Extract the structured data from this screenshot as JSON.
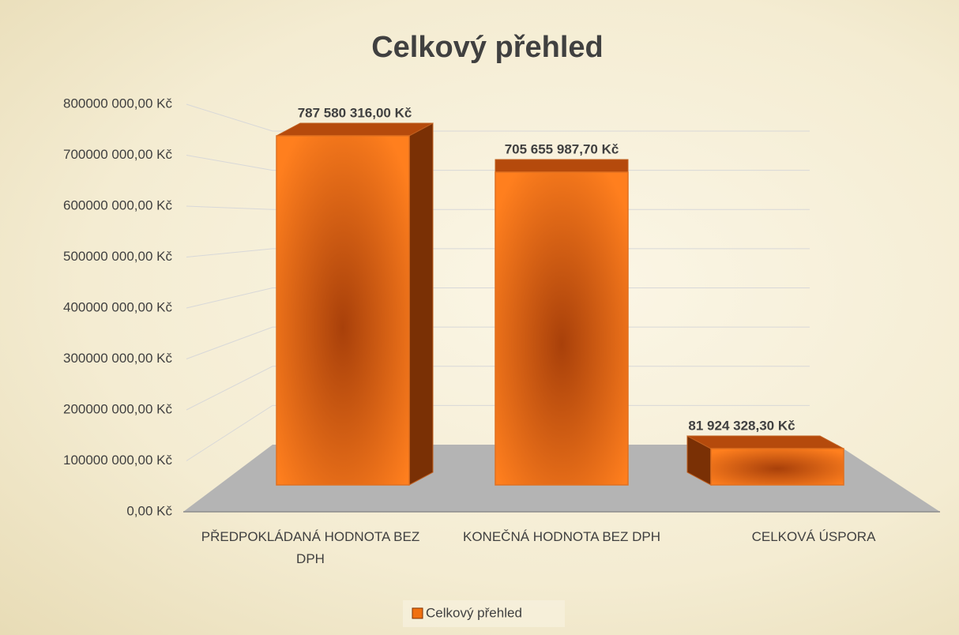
{
  "chart_data": {
    "type": "bar3d",
    "title": "Celkový přehled",
    "categories": [
      "PŘEDPOKLÁDANÁ HODNOTA BEZ DPH",
      "KONEČNÁ HODNOTA BEZ DPH",
      "CELKOVÁ ÚSPORA"
    ],
    "series": [
      {
        "name": "Celkový přehled",
        "color": "#f07010",
        "values": [
          787580316,
          705655987.7,
          81924328.3
        ],
        "value_labels": [
          "787 580 316,00 Kč",
          "705 655 987,70 Kč",
          "81 924 328,30 Kč"
        ]
      }
    ],
    "ylim": [
      0,
      800000000
    ],
    "yticks": [
      {
        "value": 0,
        "label": "0,00 Kč"
      },
      {
        "value": 100000000,
        "label": "100000 000,00 Kč"
      },
      {
        "value": 200000000,
        "label": "200000 000,00 Kč"
      },
      {
        "value": 300000000,
        "label": "300000 000,00 Kč"
      },
      {
        "value": 400000000,
        "label": "400000 000,00 Kč"
      },
      {
        "value": 500000000,
        "label": "500000 000,00 Kč"
      },
      {
        "value": 600000000,
        "label": "600000 000,00 Kč"
      },
      {
        "value": 700000000,
        "label": "700000 000,00 Kč"
      },
      {
        "value": 800000000,
        "label": "800000 000,00 Kč"
      }
    ],
    "grid": true,
    "legend": "bottom"
  }
}
